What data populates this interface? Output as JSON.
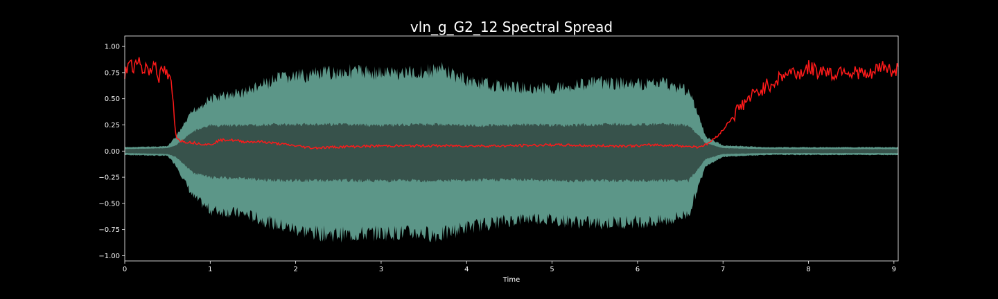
{
  "chart_data": {
    "type": "line",
    "title": "vln_g_G2_12 Spectral Spread",
    "xlabel": "Time",
    "ylabel": "",
    "xlim": [
      0,
      9.05
    ],
    "ylim": [
      -1.05,
      1.1
    ],
    "x_ticks": [
      0,
      1,
      2,
      3,
      4,
      5,
      6,
      7,
      8,
      9
    ],
    "x_tick_labels": [
      "0",
      "1",
      "2",
      "3",
      "4",
      "5",
      "6",
      "7",
      "8",
      "9"
    ],
    "y_ticks": [
      -1.0,
      -0.75,
      -0.5,
      -0.25,
      0.0,
      0.25,
      0.5,
      0.75,
      1.0
    ],
    "y_tick_labels": [
      "−1.00",
      "−0.75",
      "−0.50",
      "−0.25",
      "0.00",
      "0.25",
      "0.50",
      "0.75",
      "1.00"
    ],
    "grid": false,
    "colors": {
      "background": "#000000",
      "waveform_outer": "#5c9688",
      "waveform_inner": "#37524b",
      "spectral_spread": "#ff1a1a",
      "text": "#ffffff"
    },
    "waveform_envelope": {
      "x": [
        0,
        0.5,
        0.6,
        0.8,
        1.0,
        1.4,
        1.8,
        2.2,
        2.6,
        3.0,
        3.4,
        3.7,
        4.0,
        4.4,
        4.8,
        5.0,
        5.5,
        6.0,
        6.3,
        6.6,
        6.8,
        7.0,
        7.5,
        8.0,
        8.5,
        9.05
      ],
      "upper": [
        0.04,
        0.05,
        0.15,
        0.42,
        0.55,
        0.62,
        0.76,
        0.8,
        0.84,
        0.82,
        0.82,
        0.86,
        0.74,
        0.68,
        0.66,
        0.66,
        0.72,
        0.7,
        0.72,
        0.64,
        0.15,
        0.06,
        0.04,
        0.04,
        0.04,
        0.04
      ],
      "lower": [
        -0.04,
        -0.05,
        -0.15,
        -0.48,
        -0.62,
        -0.66,
        -0.78,
        -0.86,
        -0.88,
        -0.86,
        -0.86,
        -0.88,
        -0.8,
        -0.74,
        -0.7,
        -0.72,
        -0.76,
        -0.74,
        -0.74,
        -0.66,
        -0.15,
        -0.06,
        -0.04,
        -0.04,
        -0.04,
        -0.04
      ],
      "inner_upper": [
        0.02,
        0.03,
        0.06,
        0.2,
        0.26,
        0.26,
        0.27,
        0.27,
        0.27,
        0.26,
        0.27,
        0.27,
        0.26,
        0.26,
        0.27,
        0.26,
        0.27,
        0.27,
        0.27,
        0.26,
        0.08,
        0.03,
        0.02,
        0.02,
        0.02,
        0.02
      ],
      "inner_lower": [
        -0.02,
        -0.03,
        -0.06,
        -0.22,
        -0.27,
        -0.28,
        -0.3,
        -0.3,
        -0.3,
        -0.3,
        -0.3,
        -0.3,
        -0.3,
        -0.29,
        -0.29,
        -0.3,
        -0.3,
        -0.3,
        -0.3,
        -0.3,
        -0.08,
        -0.03,
        -0.02,
        -0.02,
        -0.02,
        -0.02
      ]
    },
    "series": [
      {
        "x": [
          0,
          0.05,
          0.1,
          0.15,
          0.2,
          0.25,
          0.3,
          0.35,
          0.4,
          0.45,
          0.5,
          0.55,
          0.58,
          0.6,
          0.65,
          0.7,
          0.8,
          0.9,
          1.0,
          1.1,
          1.2,
          1.4,
          1.6,
          1.8,
          2.0,
          2.2,
          2.5,
          3.0,
          3.5,
          4.0,
          4.5,
          5.0,
          5.5,
          6.0,
          6.2,
          6.5,
          6.7,
          6.8,
          6.9,
          7.0,
          7.1,
          7.2,
          7.3,
          7.4,
          7.5,
          7.6,
          7.7,
          7.8,
          7.9,
          8.0,
          8.1,
          8.2,
          8.3,
          8.4,
          8.5,
          8.6,
          8.7,
          8.8,
          8.9,
          9.0,
          9.05
        ],
        "y": [
          0.72,
          0.85,
          0.78,
          0.92,
          0.76,
          0.82,
          0.74,
          0.88,
          0.7,
          0.78,
          0.72,
          0.62,
          0.3,
          0.14,
          0.1,
          0.09,
          0.08,
          0.07,
          0.06,
          0.1,
          0.11,
          0.09,
          0.09,
          0.07,
          0.05,
          0.03,
          0.04,
          0.05,
          0.05,
          0.05,
          0.05,
          0.06,
          0.05,
          0.05,
          0.06,
          0.05,
          0.04,
          0.06,
          0.12,
          0.2,
          0.32,
          0.42,
          0.5,
          0.56,
          0.62,
          0.66,
          0.72,
          0.76,
          0.74,
          0.8,
          0.76,
          0.78,
          0.72,
          0.8,
          0.74,
          0.76,
          0.7,
          0.78,
          0.82,
          0.74,
          0.8
        ]
      }
    ]
  }
}
